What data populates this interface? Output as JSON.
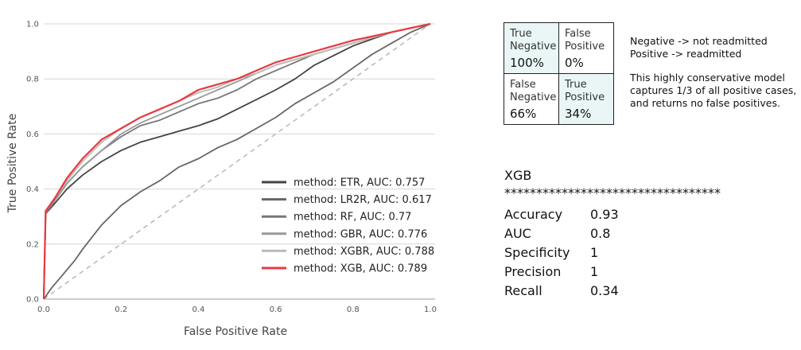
{
  "chart_data": {
    "type": "line",
    "xlabel": "False Positive Rate",
    "ylabel": "True Positive Rate",
    "xlim": [
      0,
      1
    ],
    "ylim": [
      0,
      1
    ],
    "xticks": [
      "0.0",
      "0.2",
      "0.4",
      "0.6",
      "0.8",
      "1.0"
    ],
    "yticks": [
      "0.0",
      "0.2",
      "0.4",
      "0.6",
      "0.8",
      "1.0"
    ],
    "grid": "horizontal",
    "legend_position": "lower-right",
    "series": [
      {
        "name": "method: ETR, AUC: 0.757",
        "color": "#444444",
        "x": [
          0,
          0.005,
          0.03,
          0.06,
          0.1,
          0.15,
          0.2,
          0.25,
          0.3,
          0.35,
          0.4,
          0.45,
          0.5,
          0.55,
          0.6,
          0.65,
          0.7,
          0.8,
          0.9,
          1.0
        ],
        "y": [
          0,
          0.31,
          0.35,
          0.4,
          0.45,
          0.5,
          0.54,
          0.57,
          0.59,
          0.61,
          0.63,
          0.655,
          0.69,
          0.725,
          0.76,
          0.8,
          0.85,
          0.92,
          0.97,
          1.0
        ]
      },
      {
        "name": "method: LR2R, AUC: 0.617",
        "color": "#666666",
        "x": [
          0,
          0.02,
          0.05,
          0.08,
          0.1,
          0.15,
          0.2,
          0.25,
          0.3,
          0.35,
          0.4,
          0.45,
          0.5,
          0.55,
          0.6,
          0.65,
          0.7,
          0.75,
          0.8,
          0.85,
          0.9,
          0.95,
          1.0
        ],
        "y": [
          0,
          0.04,
          0.09,
          0.14,
          0.18,
          0.27,
          0.34,
          0.39,
          0.43,
          0.48,
          0.51,
          0.55,
          0.58,
          0.62,
          0.66,
          0.71,
          0.75,
          0.79,
          0.84,
          0.89,
          0.93,
          0.97,
          1.0
        ]
      },
      {
        "name": "method: RF, AUC: 0.77",
        "color": "#777777",
        "x": [
          0,
          0.005,
          0.03,
          0.06,
          0.1,
          0.15,
          0.2,
          0.25,
          0.3,
          0.35,
          0.4,
          0.45,
          0.5,
          0.55,
          0.6,
          0.65,
          0.7,
          0.8,
          0.9,
          1.0
        ],
        "y": [
          0,
          0.31,
          0.36,
          0.42,
          0.48,
          0.54,
          0.59,
          0.63,
          0.65,
          0.68,
          0.71,
          0.73,
          0.76,
          0.8,
          0.83,
          0.86,
          0.89,
          0.93,
          0.97,
          1.0
        ]
      },
      {
        "name": "method: GBR, AUC: 0.776",
        "color": "#999999",
        "x": [
          0,
          0.005,
          0.03,
          0.06,
          0.1,
          0.15,
          0.2,
          0.25,
          0.3,
          0.35,
          0.4,
          0.45,
          0.5,
          0.55,
          0.6,
          0.65,
          0.7,
          0.8,
          0.9,
          1.0
        ],
        "y": [
          0,
          0.32,
          0.36,
          0.42,
          0.48,
          0.54,
          0.6,
          0.64,
          0.67,
          0.7,
          0.73,
          0.76,
          0.79,
          0.82,
          0.85,
          0.87,
          0.89,
          0.93,
          0.97,
          1.0
        ]
      },
      {
        "name": "method: XGBR, AUC: 0.788",
        "color": "#bbbbbb",
        "x": [
          0,
          0.005,
          0.03,
          0.06,
          0.1,
          0.15,
          0.2,
          0.25,
          0.3,
          0.35,
          0.4,
          0.45,
          0.5,
          0.55,
          0.6,
          0.65,
          0.7,
          0.8,
          0.9,
          1.0
        ],
        "y": [
          0,
          0.32,
          0.37,
          0.43,
          0.5,
          0.57,
          0.62,
          0.66,
          0.69,
          0.72,
          0.75,
          0.77,
          0.8,
          0.82,
          0.85,
          0.87,
          0.89,
          0.93,
          0.97,
          1.0
        ]
      },
      {
        "name": "method: XGB, AUC: 0.789",
        "color": "#e8393f",
        "x": [
          0,
          0.005,
          0.03,
          0.06,
          0.1,
          0.15,
          0.2,
          0.25,
          0.3,
          0.35,
          0.4,
          0.45,
          0.5,
          0.55,
          0.6,
          0.65,
          0.7,
          0.8,
          0.9,
          1.0
        ],
        "y": [
          0,
          0.32,
          0.37,
          0.44,
          0.51,
          0.58,
          0.62,
          0.66,
          0.69,
          0.72,
          0.76,
          0.78,
          0.8,
          0.83,
          0.86,
          0.88,
          0.9,
          0.94,
          0.97,
          1.0
        ]
      }
    ],
    "reference_line": {
      "x": [
        0,
        1
      ],
      "y": [
        0,
        1
      ],
      "style": "dashed",
      "color": "#bbbbbb"
    }
  },
  "confusion_matrix": {
    "true_negative": {
      "label": "True\nNegative",
      "value": "100%"
    },
    "false_positive": {
      "label": "False\nPositive",
      "value": "0%"
    },
    "false_negative": {
      "label": "False\nNegative",
      "value": "66%"
    },
    "true_positive": {
      "label": "True\nPositive",
      "value": "34%"
    },
    "highlight_color": "#eaf6f6"
  },
  "notes": {
    "negative": "Negative -> not readmitted",
    "positive": "Positive -> readmitted",
    "summary_lines": [
      "This highly conservative model",
      "captures 1/3 of all positive cases,",
      "and returns no false positives."
    ]
  },
  "metrics": {
    "model": "XGB",
    "separator": "**********************************",
    "rows": [
      {
        "name": "Accuracy",
        "value": "0.93"
      },
      {
        "name": "AUC",
        "value": "0.8"
      },
      {
        "name": "Specificity",
        "value": "1"
      },
      {
        "name": "Precision",
        "value": "1"
      },
      {
        "name": "Recall",
        "value": "0.34"
      }
    ]
  }
}
